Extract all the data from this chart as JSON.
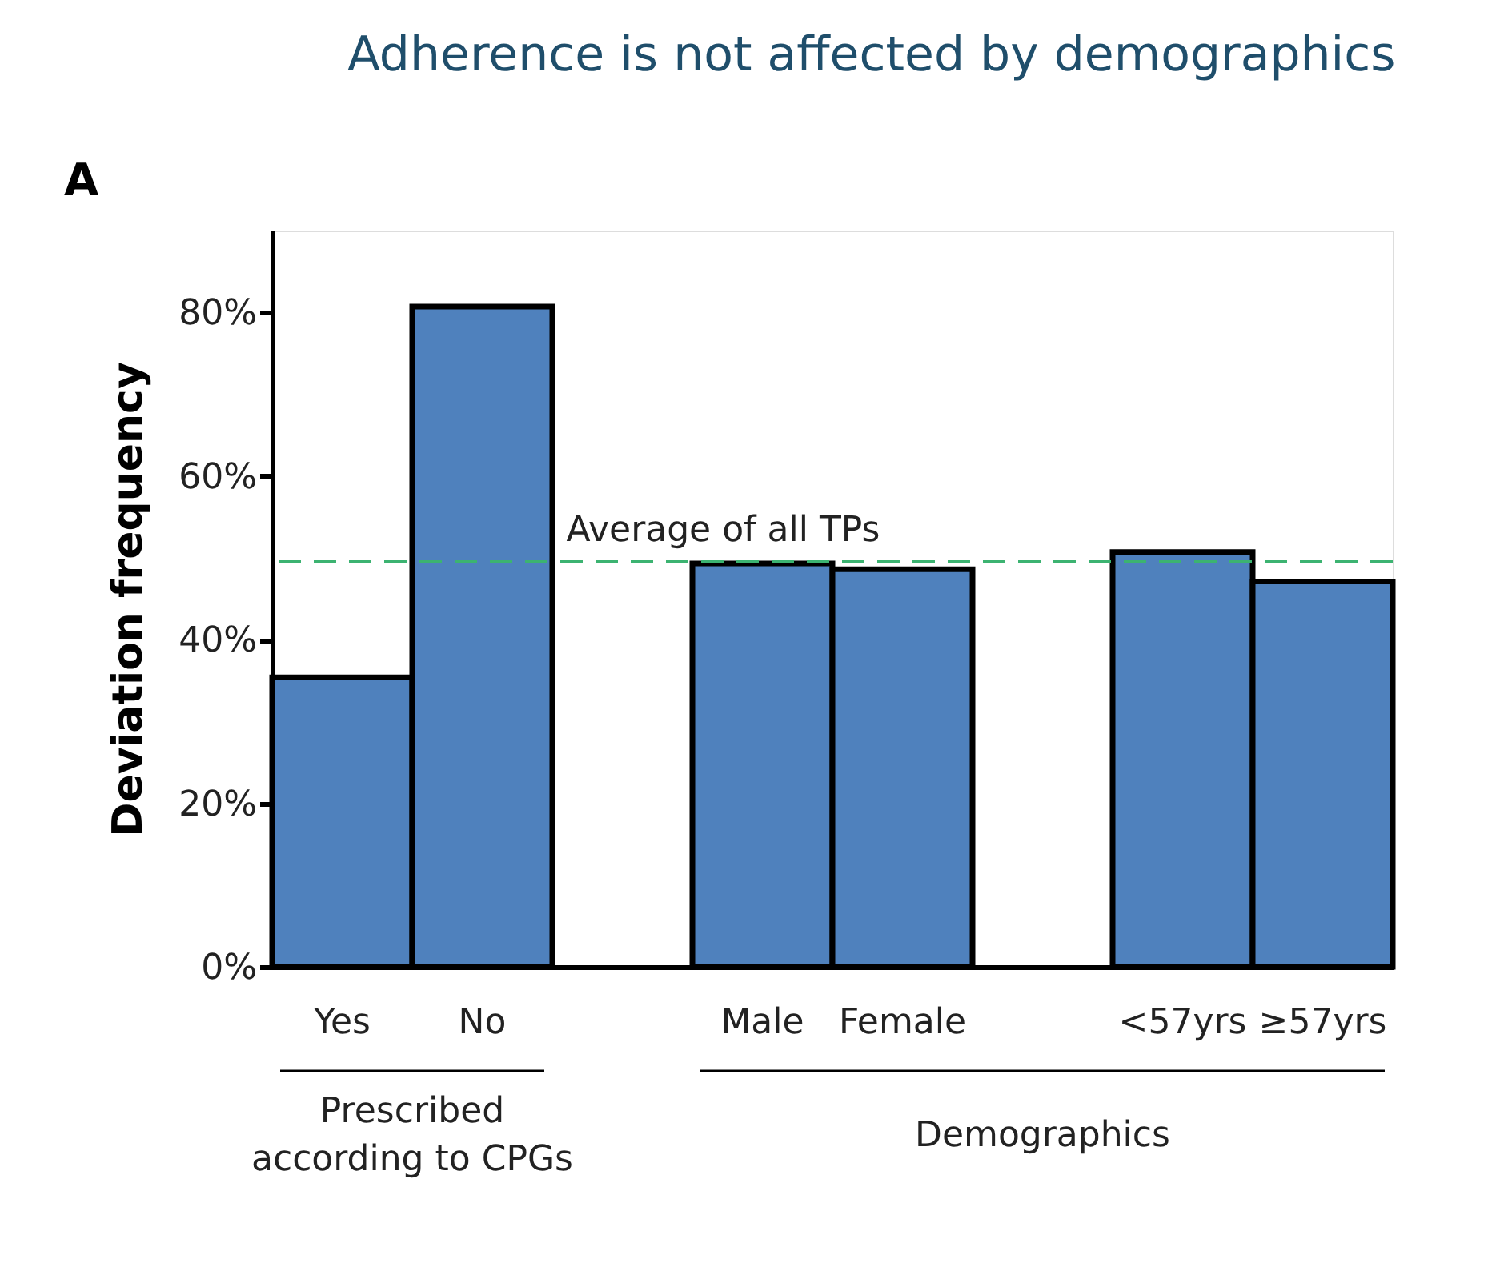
{
  "chart_data": {
    "type": "bar",
    "title": "Adherence is not affected by demographics",
    "ylabel": "Deviation frequency",
    "categories": [
      "Yes",
      "No",
      null,
      "Male",
      "Female",
      null,
      "<57yrs",
      "≥57yrs"
    ],
    "values": [
      35.4,
      80.7,
      null,
      49.3,
      48.6,
      null,
      50.7,
      47.1
    ],
    "color": "#4f81bd",
    "ylim": [
      0,
      90
    ],
    "yticks": [
      {
        "value": 0,
        "label": "0%"
      },
      {
        "value": 20,
        "label": "20%"
      },
      {
        "value": 40,
        "label": "40%"
      },
      {
        "value": 60,
        "label": "60%"
      },
      {
        "value": 80,
        "label": "80%"
      }
    ],
    "ref_lines": [
      {
        "axis": "y",
        "value": 49.5,
        "label": "Average of all TPs",
        "color": "#3cb371",
        "line_style": "dashed"
      }
    ],
    "annotations": [
      "A",
      "Prescribed according to CPGs",
      "Demographics"
    ],
    "grid": false
  }
}
